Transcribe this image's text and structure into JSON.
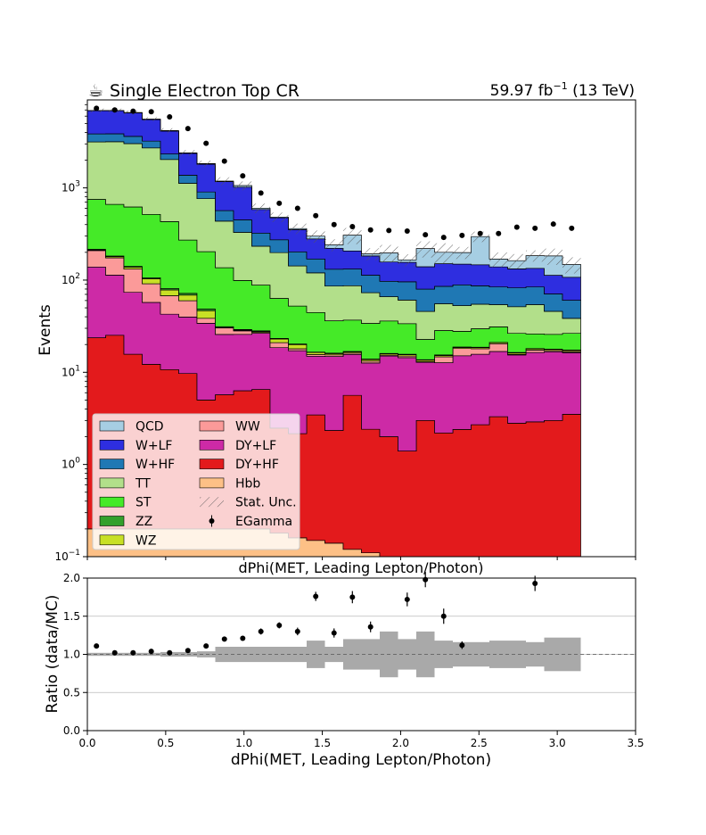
{
  "header": {
    "title_icon": "coffee-cup-icon",
    "title_glyph": "☕",
    "title": "Single Electron Top CR",
    "lumi_prefix": "59.97 fb",
    "lumi_exp": "−1",
    "lumi_suffix": " (13 TeV)"
  },
  "chart_data": [
    {
      "type": "area",
      "subtype": "stacked-step-histogram",
      "xlabel": "dPhi(MET, Leading Lepton/Photon)",
      "ylabel": "Events",
      "xlim": [
        0.0,
        3.5
      ],
      "ylim": [
        0.1,
        9000
      ],
      "yscale": "log",
      "x_tick_labels_shown": false,
      "y_tick_labels": [
        {
          "value": 0.1,
          "base": "10",
          "exp": "−1"
        },
        {
          "value": 1,
          "base": "10",
          "exp": "0"
        },
        {
          "value": 10,
          "base": "10",
          "exp": "1"
        },
        {
          "value": 100,
          "base": "10",
          "exp": "2"
        },
        {
          "value": 1000,
          "base": "10",
          "exp": "3"
        }
      ],
      "x_ticks": [
        0,
        0.5,
        1.0,
        1.5,
        2.0,
        2.5,
        3.0,
        3.5
      ],
      "bin_edges": [
        0.0,
        0.1167,
        0.2333,
        0.35,
        0.4667,
        0.5833,
        0.7,
        0.8167,
        0.9333,
        1.05,
        1.1667,
        1.2833,
        1.4,
        1.5167,
        1.6333,
        1.75,
        1.8667,
        1.9833,
        2.1,
        2.2167,
        2.3333,
        2.45,
        2.5667,
        2.6833,
        2.8,
        2.9167,
        3.0333,
        3.15
      ],
      "stack_order": "bottom-to-top",
      "series": [
        {
          "name": "Hbb",
          "color": "#fdc086",
          "values": [
            0.2,
            0.2,
            0.2,
            0.2,
            0.2,
            0.2,
            0.2,
            0.2,
            0.2,
            0.2,
            0.18,
            0.16,
            0.15,
            0.14,
            0.12,
            0.11,
            0.1,
            0.1,
            0.1,
            0.1,
            0.1,
            0.1,
            0.1,
            0.1,
            0.1,
            0.1,
            0.1
          ]
        },
        {
          "name": "DY+HF",
          "color": "#e31a1c",
          "values": [
            23.5,
            25,
            15.5,
            12,
            10.5,
            9.5,
            4.8,
            5.5,
            6.1,
            6.3,
            2.3,
            2.0,
            3.3,
            2.2,
            5.5,
            2.3,
            1.9,
            1.3,
            2.9,
            2.1,
            2.3,
            2.6,
            3.2,
            2.7,
            2.8,
            2.9,
            3.4
          ]
        },
        {
          "name": "DY+LF",
          "color": "#cd2aa6",
          "values": [
            115,
            88,
            58,
            45,
            32,
            30,
            29,
            20,
            19.5,
            20,
            16,
            15,
            11.5,
            12.5,
            10,
            10.2,
            13,
            13,
            9.8,
            10.5,
            12.7,
            13,
            13.5,
            12.6,
            13.5,
            13.7,
            12.8
          ]
        },
        {
          "name": "WW",
          "color": "#fb9a99",
          "values": [
            70,
            61,
            58,
            34,
            25,
            20,
            4.5,
            4.5,
            2.3,
            0.6,
            2.5,
            0.8,
            0.6,
            0.6,
            0.5,
            0.6,
            0.3,
            0.6,
            0.2,
            2,
            3,
            2.3,
            3.6,
            0.3,
            1,
            0.4,
            0.4
          ]
        },
        {
          "name": "WZ",
          "color": "#c8e025",
          "values": [
            4,
            5,
            6,
            12,
            10.5,
            9,
            8,
            0.5,
            0.5,
            0.5,
            2,
            2,
            0.8,
            0.5,
            0.5,
            0.5,
            0.5,
            0.5,
            0.5,
            0.5,
            0.5,
            0.5,
            0.5,
            0.5,
            0.5,
            0.5,
            0.5
          ]
        },
        {
          "name": "ZZ",
          "color": "#33a02c",
          "values": [
            3,
            3,
            3,
            3,
            3,
            3,
            2,
            0.5,
            0.5,
            0.5,
            0.3,
            0.3,
            0.2,
            0.2,
            0.2,
            0.2,
            0.2,
            0.2,
            0.2,
            0.2,
            0.2,
            0.2,
            0.2,
            0.2,
            0.2,
            0.2,
            0.2
          ]
        },
        {
          "name": "ST",
          "color": "#45ea28",
          "values": [
            535,
            480,
            480,
            410,
            350,
            200,
            155,
            105,
            70,
            60,
            40,
            32,
            28,
            20,
            20,
            20,
            20,
            18,
            9,
            13,
            9,
            11,
            10,
            10,
            8,
            8,
            9
          ]
        },
        {
          "name": "TT",
          "color": "#b2df8a",
          "values": [
            2400,
            2500,
            2400,
            2200,
            1600,
            850,
            560,
            300,
            230,
            145,
            135,
            90,
            75,
            50,
            50,
            39,
            30,
            27,
            23,
            27,
            25,
            25,
            23,
            25,
            28,
            20,
            12
          ]
        },
        {
          "name": "W+HF",
          "color": "#1f78b4",
          "values": [
            700,
            700,
            600,
            500,
            300,
            250,
            140,
            130,
            120,
            90,
            75,
            60,
            50,
            45,
            45,
            40,
            31,
            35,
            34,
            30,
            36,
            32,
            30,
            31,
            30,
            25,
            22
          ]
        },
        {
          "name": "W+LF",
          "color": "#2e2ee0",
          "values": [
            3000,
            3000,
            2900,
            2300,
            1800,
            1000,
            900,
            600,
            570,
            260,
            200,
            150,
            110,
            90,
            75,
            70,
            60,
            60,
            60,
            65,
            60,
            60,
            55,
            50,
            50,
            42,
            47
          ]
        },
        {
          "name": "QCD",
          "color": "#a6cee3",
          "values": [
            50,
            50,
            50,
            60,
            50,
            30,
            30,
            20,
            40,
            20,
            10,
            10,
            20,
            20,
            100,
            10,
            40,
            10,
            80,
            50,
            50,
            150,
            30,
            30,
            50,
            70,
            40
          ]
        }
      ],
      "stat_unc_name": "Stat. Unc.",
      "stat_unc_rel": [
        0.05,
        0.05,
        0.05,
        0.05,
        0.06,
        0.07,
        0.08,
        0.1,
        0.11,
        0.12,
        0.12,
        0.13,
        0.15,
        0.15,
        0.2,
        0.15,
        0.22,
        0.15,
        0.2,
        0.25,
        0.15,
        0.13,
        0.18,
        0.18,
        0.14,
        0.2,
        0.2
      ],
      "data": {
        "name": "EGamma",
        "x": [
          0.058,
          0.175,
          0.292,
          0.408,
          0.525,
          0.642,
          0.758,
          0.875,
          0.992,
          1.108,
          1.225,
          1.342,
          1.458,
          1.575,
          1.692,
          1.808,
          1.925,
          2.042,
          2.158,
          2.275,
          2.392,
          2.508,
          2.625,
          2.742,
          2.858,
          2.975,
          3.092
        ],
        "y": [
          7300,
          7000,
          6800,
          6700,
          5900,
          4400,
          3050,
          1950,
          1350,
          880,
          680,
          600,
          500,
          400,
          380,
          350,
          345,
          340,
          310,
          290,
          305,
          320,
          320,
          375,
          365,
          405,
          365
        ]
      },
      "legend": {
        "placement": "lower-left",
        "columns": 2
      }
    },
    {
      "type": "scatter",
      "subtype": "ratio-panel",
      "xlabel": "dPhi(MET, Leading Lepton/Photon)",
      "ylabel": "Ratio (data/MC)",
      "xlim": [
        0.0,
        3.5
      ],
      "ylim": [
        0.0,
        2.0
      ],
      "x_ticks": [
        "0.0",
        "0.5",
        "1.0",
        "1.5",
        "2.0",
        "2.5",
        "3.0",
        "3.5"
      ],
      "y_ticks": [
        "0.0",
        "0.5",
        "1.0",
        "1.5",
        "2.0"
      ],
      "grid": "horizontal",
      "reference_line": 1.0,
      "x": [
        0.058,
        0.175,
        0.292,
        0.408,
        0.525,
        0.642,
        0.758,
        0.875,
        0.992,
        1.108,
        1.225,
        1.342,
        1.458,
        1.575,
        1.692,
        1.808,
        2.042,
        2.158,
        2.275,
        2.392,
        2.858
      ],
      "y": [
        1.11,
        1.02,
        1.02,
        1.04,
        1.02,
        1.05,
        1.11,
        1.2,
        1.21,
        1.3,
        1.38,
        1.3,
        1.76,
        1.28,
        1.75,
        1.36,
        1.72,
        1.98,
        1.5,
        1.12,
        1.93
      ],
      "yerr": [
        0.01,
        0.01,
        0.01,
        0.01,
        0.01,
        0.02,
        0.02,
        0.03,
        0.03,
        0.04,
        0.04,
        0.05,
        0.06,
        0.06,
        0.08,
        0.07,
        0.09,
        0.1,
        0.1,
        0.05,
        0.1
      ],
      "unc_band_rel": [
        0.02,
        0.02,
        0.02,
        0.02,
        0.03,
        0.03,
        0.04,
        0.1,
        0.1,
        0.1,
        0.1,
        0.1,
        0.18,
        0.1,
        0.2,
        0.2,
        0.3,
        0.2,
        0.3,
        0.18,
        0.16,
        0.16,
        0.18,
        0.18,
        0.16,
        0.22,
        0.22
      ]
    }
  ]
}
